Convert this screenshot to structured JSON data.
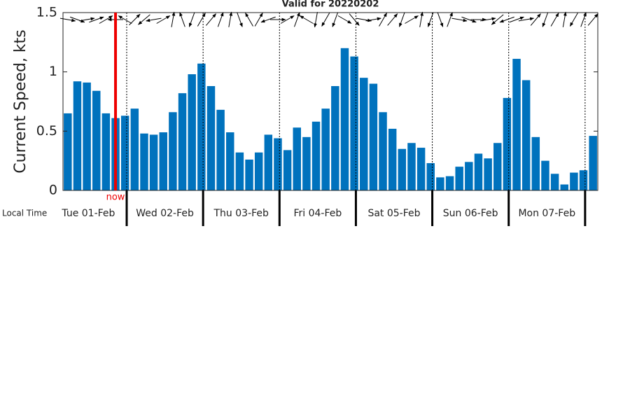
{
  "chart_data": {
    "type": "bar",
    "title": "Valid for 20220202",
    "y_label": "Current Speed, kts",
    "x_label": "Local Time",
    "color": "#0072bd",
    "categories": [
      null,
      null,
      null,
      null,
      null,
      null,
      null,
      null,
      null,
      null,
      null,
      null,
      null,
      null,
      null,
      null,
      null,
      null,
      null,
      null,
      null,
      null,
      null,
      null,
      null,
      null,
      null,
      null,
      null,
      null,
      null,
      null,
      null,
      null,
      null,
      null,
      null,
      null,
      null,
      null,
      null,
      null,
      null,
      null,
      null,
      null,
      null,
      null,
      null,
      null,
      null,
      null,
      null,
      null,
      null,
      null
    ],
    "values": [
      0.65,
      0.92,
      0.91,
      0.84,
      0.65,
      0.61,
      0.63,
      0.69,
      0.48,
      0.47,
      0.49,
      0.66,
      0.82,
      0.98,
      1.07,
      0.88,
      0.68,
      0.49,
      0.32,
      0.26,
      0.32,
      0.47,
      0.44,
      0.34,
      0.53,
      0.45,
      0.58,
      0.69,
      0.88,
      1.2,
      1.13,
      0.95,
      0.9,
      0.66,
      0.52,
      0.35,
      0.4,
      0.36,
      0.23,
      0.11,
      0.12,
      0.2,
      0.24,
      0.31,
      0.27,
      0.4,
      0.78,
      1.11,
      0.93,
      0.45,
      0.25,
      0.14,
      0.05,
      0.15,
      0.17,
      0.46
    ],
    "directions": [
      100,
      110,
      80,
      70,
      60,
      270,
      300,
      45,
      230,
      260,
      60,
      10,
      340,
      200,
      30,
      40,
      20,
      10,
      160,
      330,
      30,
      250,
      90,
      60,
      20,
      300,
      190,
      210,
      200,
      120,
      140,
      100,
      80,
      30,
      40,
      200,
      60,
      10,
      200,
      160,
      20,
      100,
      110,
      90,
      80,
      230,
      250,
      70,
      80,
      40,
      200,
      30,
      10,
      210,
      20,
      40
    ],
    "ylim": [
      0,
      1.5
    ],
    "yticks": [
      0,
      0.5,
      1,
      1.5
    ],
    "days": [
      "Tue 01-Feb",
      "Wed 02-Feb",
      "Thu 03-Feb",
      "Fri 04-Feb",
      "Sat 05-Feb",
      "Sun 06-Feb",
      "Mon 07-Feb"
    ],
    "now": {
      "label": "now",
      "x": 5
    }
  }
}
